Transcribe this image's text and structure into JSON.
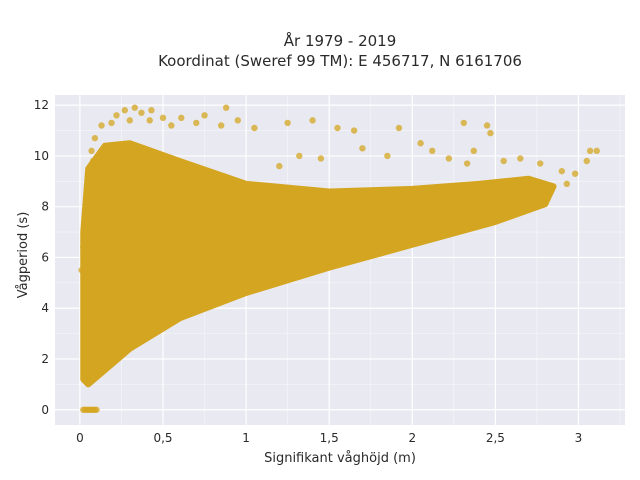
{
  "chart_data": {
    "type": "scatter",
    "title_line1": "År 1979 - 2019",
    "title_line2": "Koordinat (Sweref 99 TM): E 456717, N 6161706",
    "xlabel": "Signifikant våghöjd (m)",
    "ylabel": "Vågperiod (s)",
    "xlim": [
      -0.15,
      3.28
    ],
    "ylim": [
      -0.6,
      12.4
    ],
    "x_ticks": [
      0,
      0.5,
      1,
      1.5,
      2,
      2.5,
      3
    ],
    "x_tick_labels": [
      "0",
      "0,5",
      "1",
      "1,5",
      "2",
      "2,5",
      "3"
    ],
    "y_ticks": [
      0,
      2,
      4,
      6,
      8,
      10,
      12
    ],
    "y_tick_labels": [
      "0",
      "2",
      "4",
      "6",
      "8",
      "10",
      "12"
    ],
    "grid": true,
    "background_color": "#e9e9f1",
    "grid_color": "#ffffff",
    "marker_color": "#d4a520",
    "marker_opacity": 0.75,
    "dense_region_polygon": [
      [
        0.02,
        1.2
      ],
      [
        0.05,
        1.0
      ],
      [
        0.3,
        2.4
      ],
      [
        0.6,
        3.6
      ],
      [
        1.0,
        4.6
      ],
      [
        1.5,
        5.6
      ],
      [
        2.0,
        6.5
      ],
      [
        2.5,
        7.4
      ],
      [
        2.8,
        8.1
      ],
      [
        2.85,
        8.8
      ],
      [
        2.7,
        9.1
      ],
      [
        2.4,
        8.9
      ],
      [
        2.0,
        8.7
      ],
      [
        1.5,
        8.6
      ],
      [
        1.0,
        8.9
      ],
      [
        0.6,
        9.8
      ],
      [
        0.3,
        10.5
      ],
      [
        0.15,
        10.4
      ],
      [
        0.05,
        9.5
      ],
      [
        0.02,
        7.0
      ]
    ],
    "outlier_points": [
      [
        0.33,
        11.9
      ],
      [
        0.27,
        11.8
      ],
      [
        0.37,
        11.7
      ],
      [
        0.43,
        11.8
      ],
      [
        0.88,
        11.9
      ],
      [
        0.22,
        11.6
      ],
      [
        0.5,
        11.5
      ],
      [
        0.42,
        11.4
      ],
      [
        0.61,
        11.5
      ],
      [
        0.75,
        11.6
      ],
      [
        0.13,
        11.2
      ],
      [
        0.19,
        11.3
      ],
      [
        0.3,
        11.4
      ],
      [
        0.55,
        11.2
      ],
      [
        0.7,
        11.3
      ],
      [
        0.85,
        11.2
      ],
      [
        0.95,
        11.4
      ],
      [
        1.05,
        11.1
      ],
      [
        1.25,
        11.3
      ],
      [
        1.4,
        11.4
      ],
      [
        1.55,
        11.1
      ],
      [
        1.65,
        11.0
      ],
      [
        1.92,
        11.1
      ],
      [
        2.31,
        11.3
      ],
      [
        2.45,
        11.2
      ],
      [
        2.47,
        10.9
      ],
      [
        0.09,
        10.7
      ],
      [
        0.07,
        10.2
      ],
      [
        0.08,
        9.8
      ],
      [
        0.05,
        9.2
      ],
      [
        1.7,
        10.3
      ],
      [
        1.85,
        10.0
      ],
      [
        2.05,
        10.5
      ],
      [
        2.12,
        10.2
      ],
      [
        2.22,
        9.9
      ],
      [
        2.33,
        9.7
      ],
      [
        2.37,
        10.2
      ],
      [
        2.55,
        9.8
      ],
      [
        2.65,
        9.9
      ],
      [
        2.77,
        9.7
      ],
      [
        2.9,
        9.4
      ],
      [
        3.05,
        9.8
      ],
      [
        3.07,
        10.2
      ],
      [
        3.11,
        10.2
      ],
      [
        2.98,
        9.3
      ],
      [
        2.93,
        8.9
      ],
      [
        1.32,
        10.0
      ],
      [
        1.45,
        9.9
      ],
      [
        1.2,
        9.6
      ],
      [
        0.05,
        7.4
      ],
      [
        0.02,
        6.4
      ],
      [
        0.01,
        5.5
      ]
    ],
    "zero_points": [
      [
        0.02,
        0
      ],
      [
        0.03,
        0
      ],
      [
        0.04,
        0
      ],
      [
        0.05,
        0
      ],
      [
        0.06,
        0
      ],
      [
        0.07,
        0
      ],
      [
        0.08,
        0
      ],
      [
        0.09,
        0
      ],
      [
        0.1,
        0
      ]
    ]
  }
}
